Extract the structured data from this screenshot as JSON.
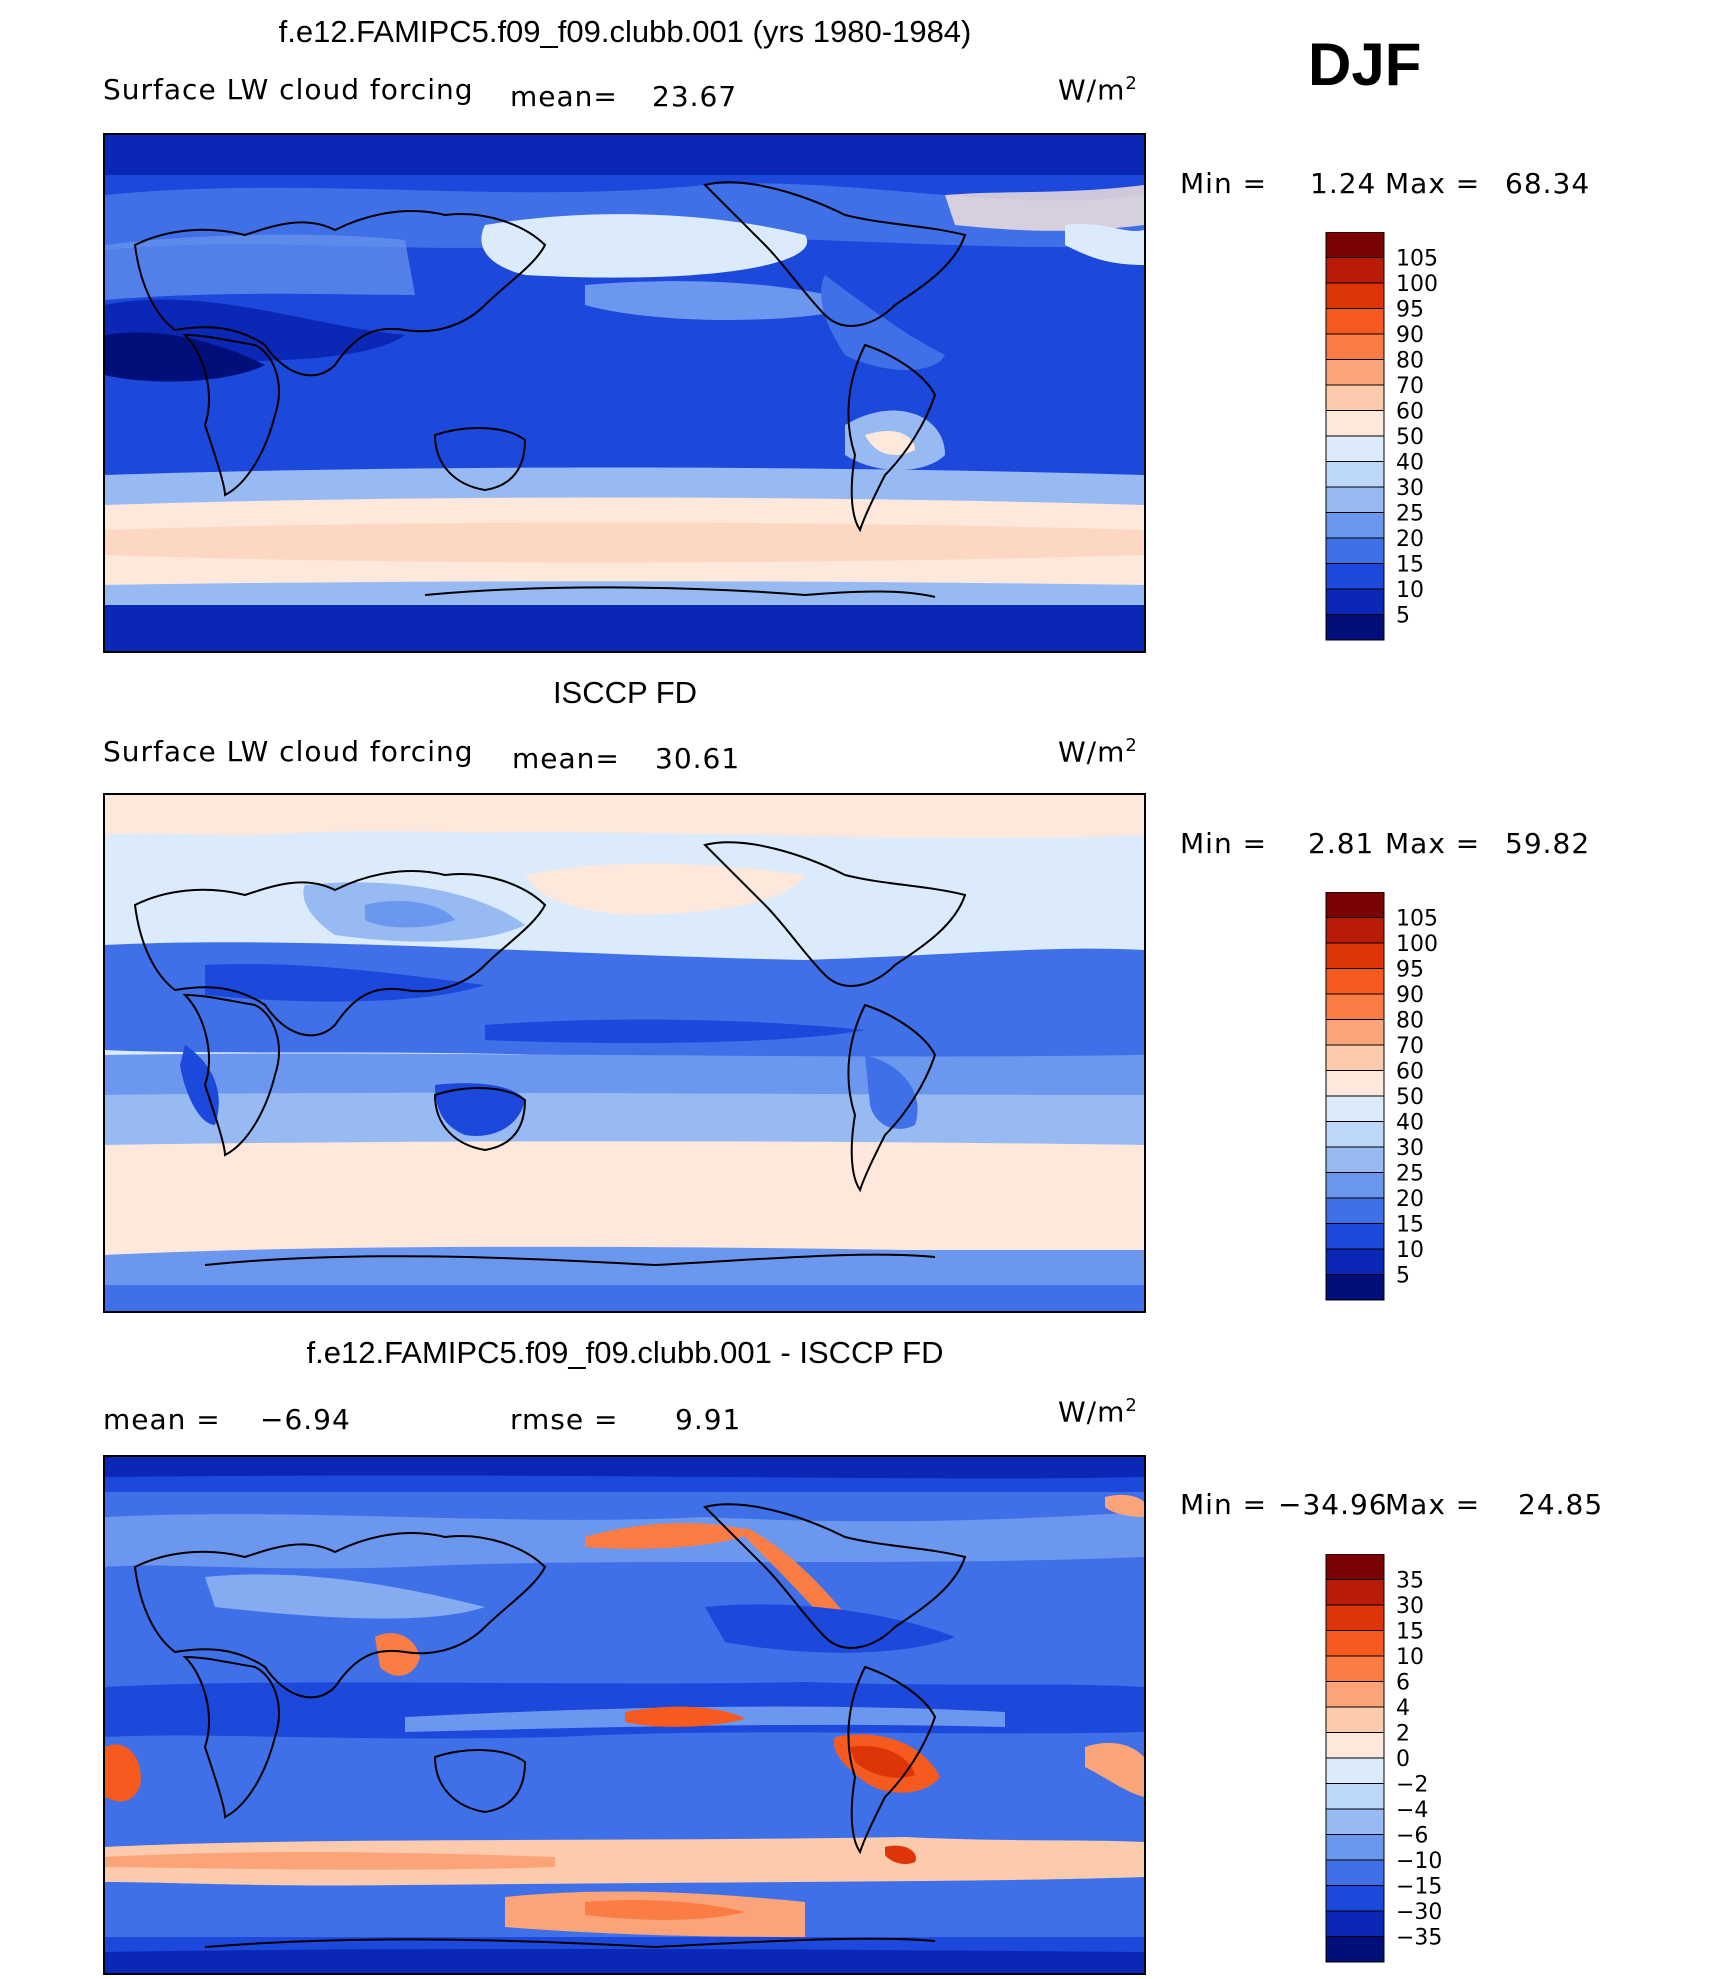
{
  "season": "DJF",
  "units_label": "W/m",
  "units_sup": "2",
  "panels": [
    {
      "title": "f.e12.FAMIPC5.f09_f09.clubb.001 (yrs 1980-1984)",
      "subtitle": "Surface LW cloud forcing",
      "stat1_label": "mean=",
      "stat1_value": "23.67",
      "min_label": "Min  =",
      "min_value": "1.24",
      "max_label": "Max  =",
      "max_value": "68.34"
    },
    {
      "title": "ISCCP FD",
      "subtitle": "Surface LW cloud forcing",
      "stat1_label": "mean=",
      "stat1_value": "30.61",
      "min_label": "Min  =",
      "min_value": "2.81",
      "max_label": "Max  =",
      "max_value": "59.82"
    },
    {
      "title": "f.e12.FAMIPC5.f09_f09.clubb.001 - ISCCP FD",
      "stat1_label": "mean  =",
      "stat1_value": "−6.94",
      "stat2_label": "rmse  =",
      "stat2_value": "9.91",
      "min_label": "Min  =",
      "min_value": "−34.96",
      "max_label": "Max  =",
      "max_value": "24.85"
    }
  ],
  "chart_data": [
    {
      "type": "heatmap",
      "title": "f.e12.FAMIPC5.f09_f09.clubb.001 (yrs 1980-1984)",
      "variable": "Surface LW cloud forcing",
      "units": "W/m2",
      "mean": 23.67,
      "min": 1.24,
      "max": 68.34,
      "colorbar_levels": [
        "105",
        "100",
        "95",
        "90",
        "80",
        "70",
        "60",
        "50",
        "40",
        "30",
        "25",
        "20",
        "15",
        "10",
        "5"
      ],
      "colors": [
        "#7a0403",
        "#b81c06",
        "#de3508",
        "#f75a1e",
        "#fa7d45",
        "#fba479",
        "#fccaad",
        "#fde8db",
        "#dcebfb",
        "#bdd8f8",
        "#97baf3",
        "#6b97ee",
        "#3f70e8",
        "#1c48dc",
        "#0a28b5",
        "#020f7a"
      ]
    },
    {
      "type": "heatmap",
      "title": "ISCCP FD",
      "variable": "Surface LW cloud forcing",
      "units": "W/m2",
      "mean": 30.61,
      "min": 2.81,
      "max": 59.82,
      "colorbar_levels": [
        "105",
        "100",
        "95",
        "90",
        "80",
        "70",
        "60",
        "50",
        "40",
        "30",
        "25",
        "20",
        "15",
        "10",
        "5"
      ],
      "colors": [
        "#7a0403",
        "#b81c06",
        "#de3508",
        "#f75a1e",
        "#fa7d45",
        "#fba479",
        "#fccaad",
        "#fde8db",
        "#dcebfb",
        "#bdd8f8",
        "#97baf3",
        "#6b97ee",
        "#3f70e8",
        "#1c48dc",
        "#0a28b5",
        "#020f7a"
      ]
    },
    {
      "type": "heatmap",
      "title": "f.e12.FAMIPC5.f09_f09.clubb.001 - ISCCP FD",
      "units": "W/m2",
      "mean": -6.94,
      "rmse": 9.91,
      "min": -34.96,
      "max": 24.85,
      "colorbar_levels": [
        "35",
        "30",
        "15",
        "10",
        "6",
        "4",
        "2",
        "0",
        "−2",
        "−4",
        "−6",
        "−10",
        "−15",
        "−30",
        "−35"
      ],
      "colors": [
        "#7a0403",
        "#b81c06",
        "#de3508",
        "#f75a1e",
        "#fa7d45",
        "#fba479",
        "#fccaad",
        "#fde8db",
        "#dcebfb",
        "#bdd8f8",
        "#97baf3",
        "#6b97ee",
        "#3f70e8",
        "#1c48dc",
        "#0a28b5",
        "#020f7a"
      ]
    }
  ]
}
